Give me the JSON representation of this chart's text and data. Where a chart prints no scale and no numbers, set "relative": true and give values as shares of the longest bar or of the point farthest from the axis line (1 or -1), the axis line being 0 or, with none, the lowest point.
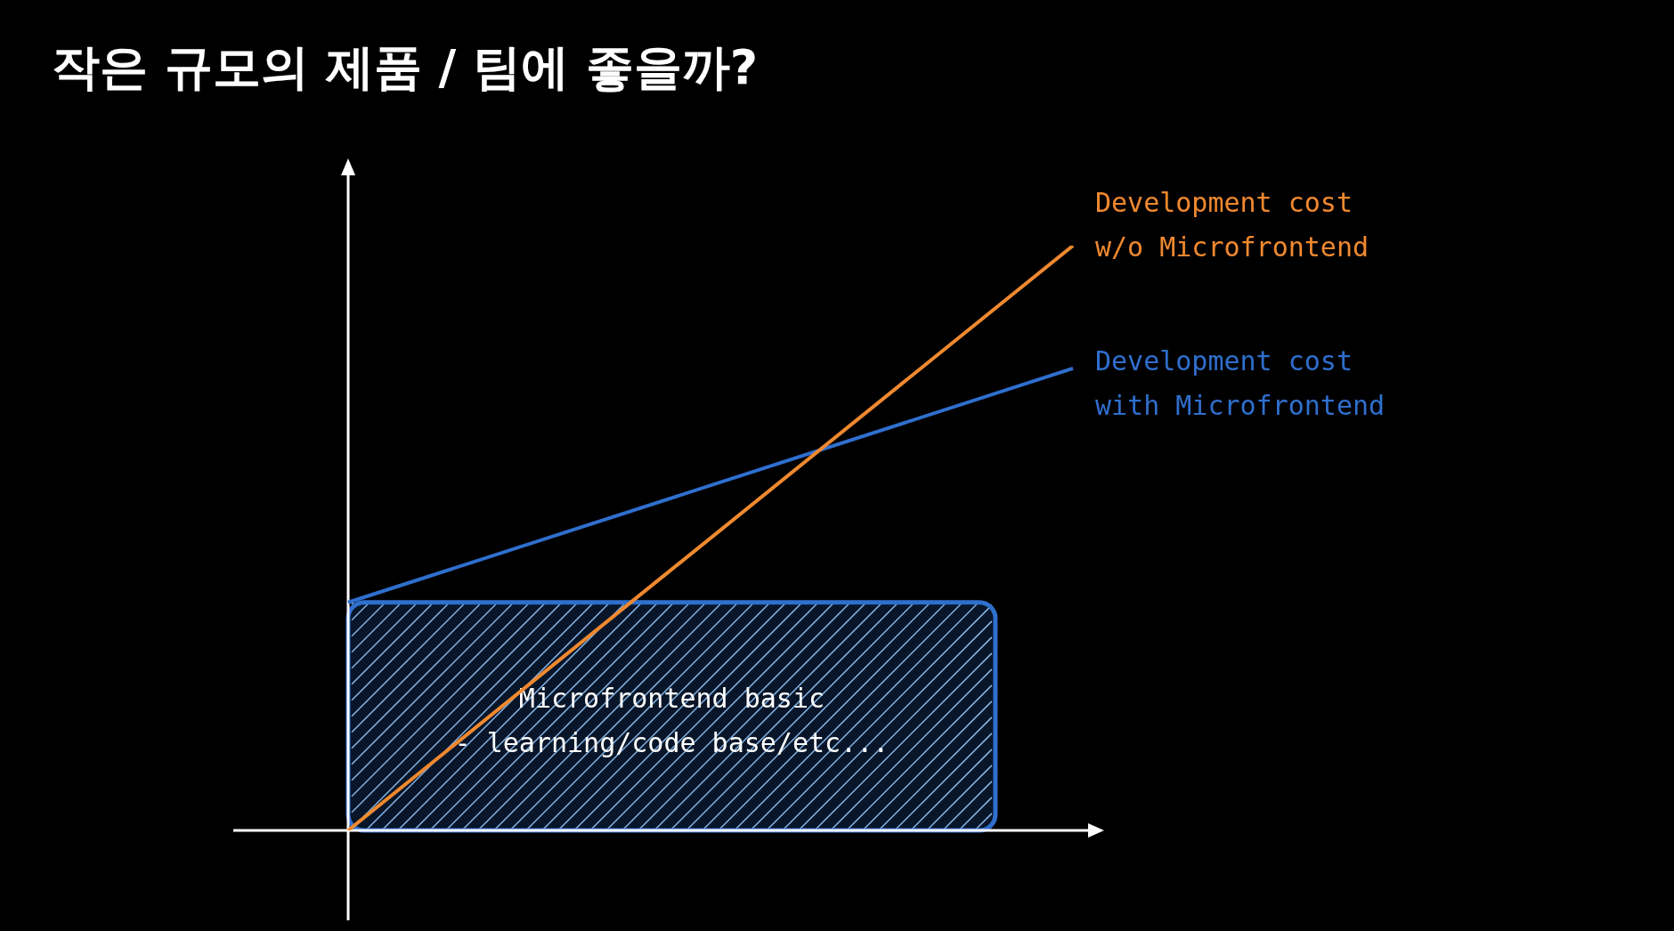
{
  "chart_data": {
    "type": "line",
    "title": "작은 규모의 제품 / 팀에 좋을까?",
    "relative": true,
    "categories": [
      null,
      null
    ],
    "series": [
      {
        "name": "Development cost w/o Microfrontend",
        "color": "#f0892f",
        "values": [
          0,
          1
        ]
      },
      {
        "name": "Development cost with Microfrontend",
        "color": "#2f6fce",
        "values": [
          0.39,
          0.79
        ]
      }
    ],
    "bands": [
      {
        "axis": "y",
        "from": 0,
        "to": 0.39,
        "label": "Microfrontend basic - learning/code base/etc...",
        "color": "#2f6fce"
      }
    ]
  }
}
